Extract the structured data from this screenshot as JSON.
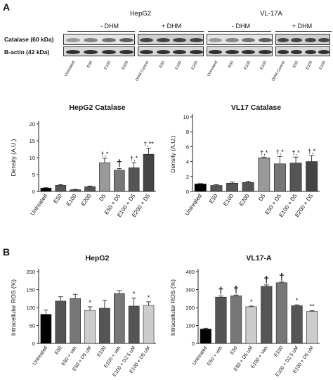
{
  "panel_labels": {
    "a": "A",
    "b": "B"
  },
  "western_blot": {
    "cell_lines": [
      "HepG2",
      "VL-17A"
    ],
    "treatment_groups": [
      "- DHM",
      "+ DHM",
      "- DHM",
      "+ DHM"
    ],
    "row_labels": [
      "Catalase (60 kDa)",
      "B-actin (42 kDa)"
    ],
    "lanes": [
      [
        "Untreated",
        "E50",
        "E100",
        "E200"
      ],
      [
        "DHM Control",
        "E50",
        "E100",
        "E200"
      ],
      [
        "Untreated",
        "E50",
        "E100",
        "E200"
      ],
      [
        "DHM Control",
        "E50",
        "E100",
        "E200"
      ]
    ]
  },
  "chart_data": [
    {
      "type": "bar",
      "title": "HepG2 Catalase",
      "ylabel": "Density (A.U.)",
      "xlabel": "",
      "ylim": [
        0,
        20
      ],
      "yticks": [
        0,
        5,
        10,
        15,
        20
      ],
      "categories": [
        "Untreated",
        "E50",
        "E100",
        "E200",
        "D5",
        "E50 + D5",
        "E100 + D5",
        "E200 + D5"
      ],
      "values": [
        1.0,
        1.8,
        0.5,
        1.4,
        8.5,
        6.3,
        7.0,
        11.0
      ],
      "errors": [
        0.1,
        0.2,
        0.1,
        0.2,
        1.3,
        0.5,
        1.5,
        1.8
      ],
      "annotations": [
        "",
        "",
        "",
        "",
        "†,*",
        "†",
        "†,*",
        "†,**"
      ],
      "colors": [
        "#000000",
        "#555555",
        "#555555",
        "#555555",
        "#999999",
        "#777777",
        "#555555",
        "#444444"
      ]
    },
    {
      "type": "bar",
      "title": "VL17 Catalase",
      "ylabel": "Density (A.U.)",
      "xlabel": "",
      "ylim": [
        0,
        10
      ],
      "yticks": [
        0,
        2,
        4,
        6,
        8,
        10
      ],
      "categories": [
        "Untreated",
        "E50",
        "E100",
        "E200",
        "D5",
        "E50 + D5",
        "E100 + D5",
        "E200 + D5"
      ],
      "values": [
        1.0,
        0.8,
        1.1,
        1.2,
        4.5,
        3.7,
        3.8,
        4.0
      ],
      "errors": [
        0.05,
        0.1,
        0.15,
        0.15,
        0.1,
        1.0,
        0.8,
        0.8
      ],
      "annotations": [
        "",
        "",
        "",
        "",
        "†,*",
        "†,*",
        "†,*",
        "†,*"
      ],
      "colors": [
        "#000000",
        "#555555",
        "#555555",
        "#555555",
        "#999999",
        "#777777",
        "#555555",
        "#444444"
      ]
    },
    {
      "type": "bar",
      "title": "HepG2",
      "ylabel": "Intracellular ROS (%)",
      "xlabel": "",
      "ylim": [
        0,
        200
      ],
      "yticks": [
        0,
        50,
        100,
        150,
        200
      ],
      "categories": [
        "Untreated",
        "E50",
        "E50 + veh",
        "E50 + D5 uM",
        "E100",
        "E100 + veh",
        "E100 + D2.5 uM",
        "E100 + D5 uM"
      ],
      "values": [
        81,
        118,
        125,
        92,
        98,
        139,
        104,
        106
      ],
      "errors": [
        12,
        12,
        12,
        10,
        22,
        8,
        22,
        10
      ],
      "annotations": [
        "",
        "",
        "",
        "*",
        "",
        "",
        "*",
        "*"
      ],
      "colors": [
        "#000000",
        "#555555",
        "#777777",
        "#cccccc",
        "#555555",
        "#777777",
        "#555555",
        "#cccccc"
      ]
    },
    {
      "type": "bar",
      "title": "VL17-A",
      "ylabel": "Intracellular ROS (%)",
      "xlabel": "",
      "ylim": [
        0,
        400
      ],
      "yticks": [
        0,
        100,
        200,
        300,
        400
      ],
      "categories": [
        "Untreated",
        "E50 + veh",
        "E50",
        "E50 + D5 uM",
        "E100 + Veh",
        "E100",
        "E100 + D2.5 uM",
        "E100 + D5 uM"
      ],
      "values": [
        80,
        258,
        265,
        204,
        318,
        338,
        210,
        178
      ],
      "errors": [
        5,
        6,
        5,
        4,
        8,
        4,
        5,
        4
      ],
      "annotations": [
        "",
        "†",
        "†",
        "*",
        "†",
        "†",
        "*",
        "**"
      ],
      "colors": [
        "#000000",
        "#555555",
        "#777777",
        "#cccccc",
        "#555555",
        "#777777",
        "#555555",
        "#cccccc"
      ]
    }
  ]
}
